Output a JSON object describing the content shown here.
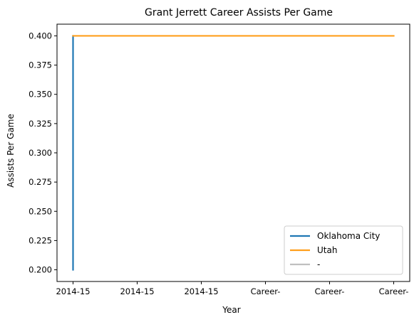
{
  "chart_data": {
    "type": "line",
    "title": "Grant Jerrett Career Assists Per Game",
    "xlabel": "Year",
    "ylabel": "Assists Per Game",
    "x_tick_labels": [
      "2014-15",
      "2014-15",
      "2014-15",
      "Career-",
      "Career-",
      "Career-"
    ],
    "ylim": [
      0.19,
      0.41
    ],
    "y_ticks": [
      0.2,
      0.225,
      0.25,
      0.275,
      0.3,
      0.325,
      0.35,
      0.375,
      0.4
    ],
    "y_tick_labels": [
      "0.200",
      "0.225",
      "0.250",
      "0.275",
      "0.300",
      "0.325",
      "0.350",
      "0.375",
      "0.400"
    ],
    "grid": false,
    "legend_position": "bottom-right",
    "series": [
      {
        "name": "Oklahoma City",
        "color": "#1f77b4",
        "points": [
          {
            "x": 0,
            "y": 0.2
          },
          {
            "x": 0,
            "y": 0.4
          }
        ]
      },
      {
        "name": "Utah",
        "color": "#ff9f1c",
        "points": [
          {
            "x": 0,
            "y": 0.4
          },
          {
            "x": 5,
            "y": 0.4
          }
        ]
      },
      {
        "name": "-",
        "color": "#c0c0c0",
        "points": []
      }
    ]
  }
}
